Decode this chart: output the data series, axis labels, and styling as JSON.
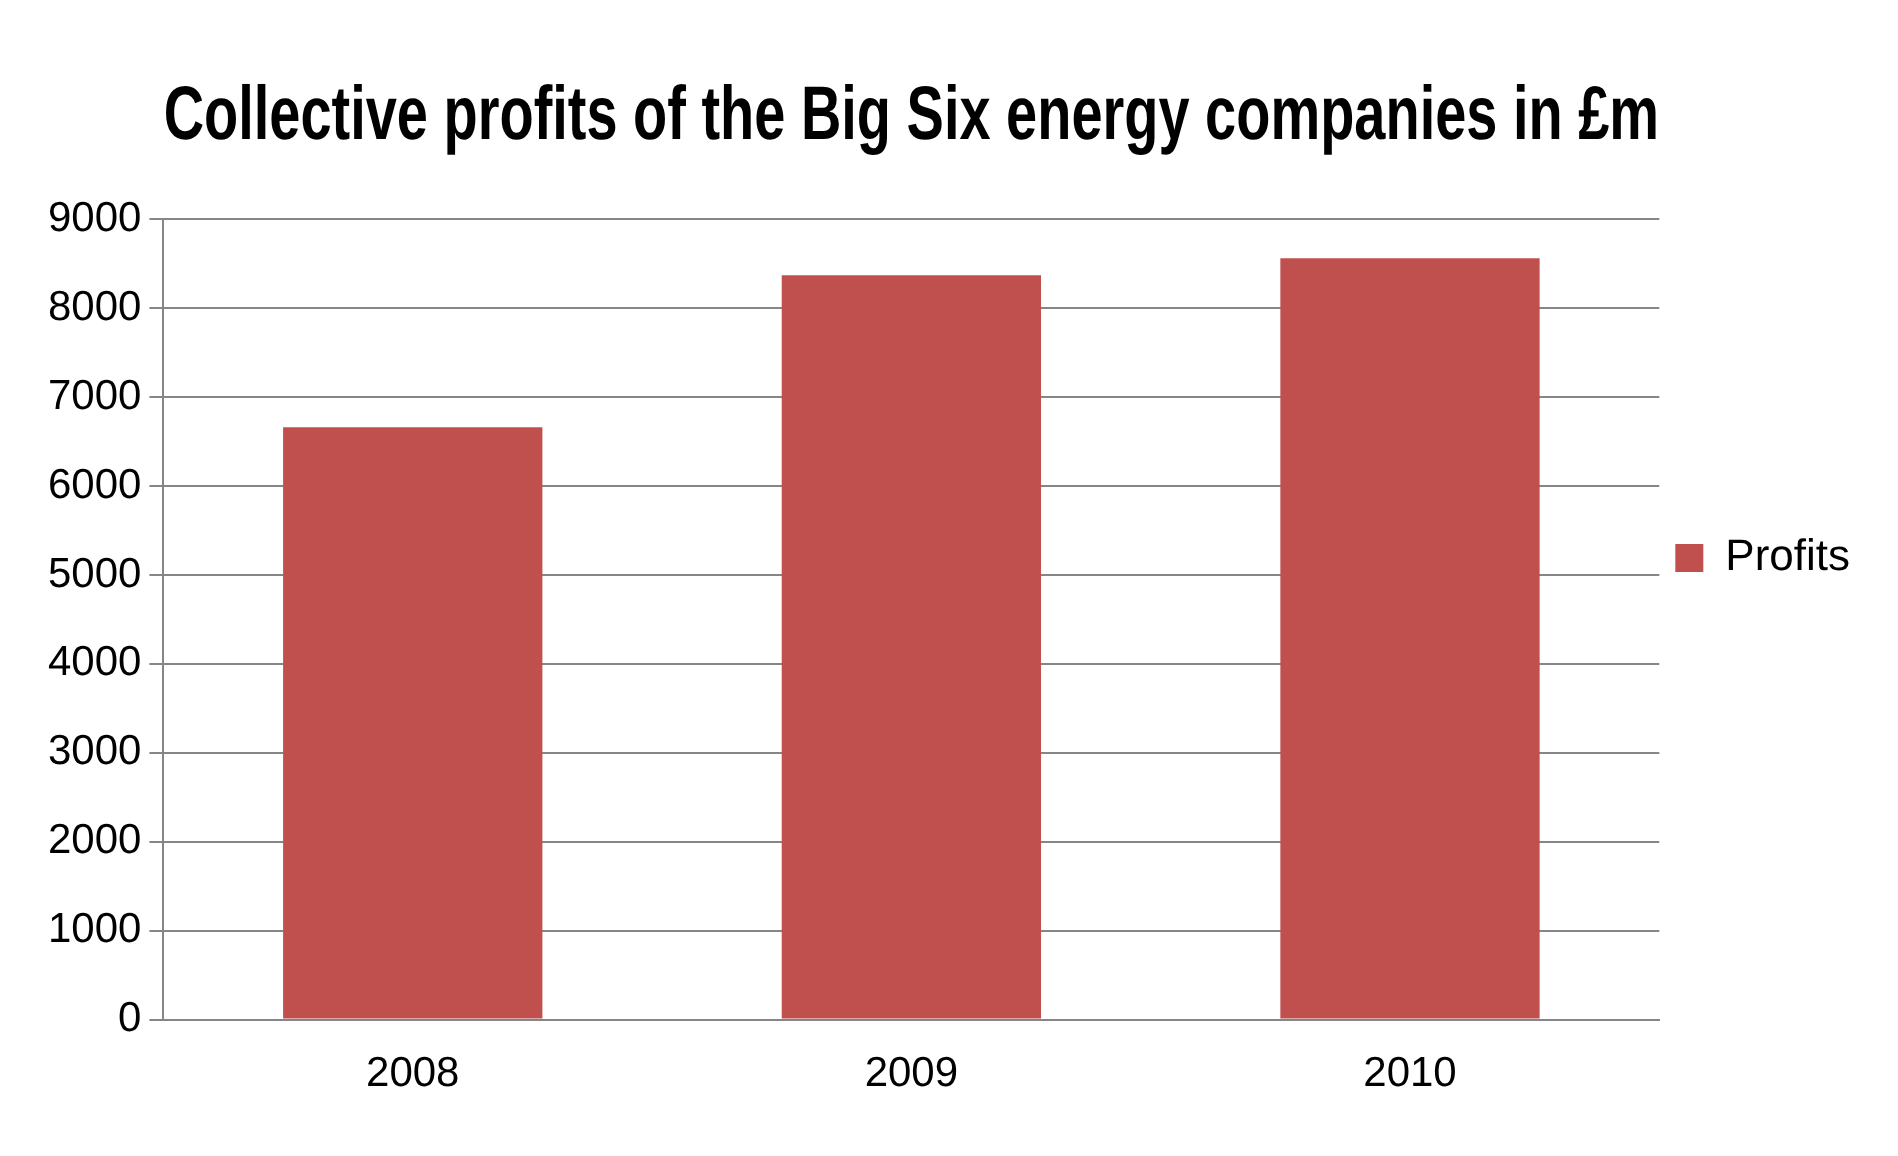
{
  "chart_data": {
    "type": "bar",
    "title": "Collective profits of the Big Six energy companies in £m",
    "categories": [
      "2008",
      "2009",
      "2010"
    ],
    "series": [
      {
        "name": "Profits",
        "color": "#c0504d",
        "values": [
          6660,
          8370,
          8560
        ]
      }
    ],
    "ylim": [
      0,
      9000
    ],
    "yticks": [
      0,
      1000,
      2000,
      3000,
      4000,
      5000,
      6000,
      7000,
      8000,
      9000
    ],
    "grid": "y",
    "legend": "right"
  }
}
